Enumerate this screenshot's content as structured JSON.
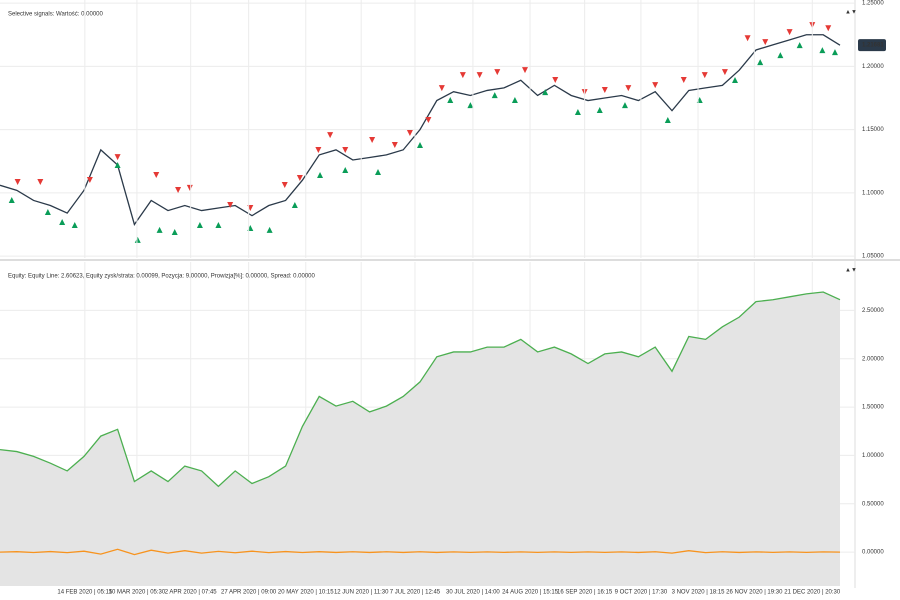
{
  "chart_data": [
    {
      "type": "line",
      "annotation": "Selective signals: Wartość: 0.00000",
      "annotation_color": "#e53935",
      "x": [
        0,
        2,
        4,
        6,
        8,
        10,
        12,
        14,
        16,
        18,
        20,
        22,
        24,
        26,
        28,
        30,
        32,
        34,
        36,
        38,
        40,
        42,
        44,
        46,
        48,
        50,
        52,
        54,
        56,
        58,
        60,
        62,
        64,
        66,
        68,
        70,
        72,
        74,
        76,
        78,
        80,
        82,
        84,
        86,
        88,
        90,
        92,
        94,
        96,
        98,
        100
      ],
      "xlim": [
        0,
        100
      ],
      "ylim": [
        1.0485,
        1.2525
      ],
      "yticks": [
        {
          "value": 1.05,
          "label": "1.05000"
        },
        {
          "value": 1.1,
          "label": "1.10000"
        },
        {
          "value": 1.15,
          "label": "1.15000"
        },
        {
          "value": 1.2,
          "label": "1.20000"
        },
        {
          "value": 1.25,
          "label": "1.25000"
        }
      ],
      "grid": true,
      "last_price": 1.21681,
      "series": [
        {
          "color": "#2b3a4a",
          "values": [
            1.106,
            1.102,
            1.094,
            1.09,
            1.084,
            1.102,
            1.134,
            1.122,
            1.075,
            1.094,
            1.086,
            1.09,
            1.086,
            1.088,
            1.09,
            1.082,
            1.09,
            1.094,
            1.11,
            1.13,
            1.134,
            1.126,
            1.128,
            1.13,
            1.134,
            1.15,
            1.173,
            1.18,
            1.177,
            1.181,
            1.183,
            1.189,
            1.177,
            1.185,
            1.177,
            1.173,
            1.175,
            1.177,
            1.173,
            1.18,
            1.165,
            1.181,
            1.183,
            1.185,
            1.197,
            1.213,
            1.217,
            1.221,
            1.225,
            1.225,
            1.2168
          ]
        },
        {
          "marker": "triangle-down",
          "color": "#e53935",
          "x": [
            2.1,
            4.8,
            10.7,
            14.0,
            18.6,
            21.2,
            22.6,
            27.4,
            29.8,
            33.9,
            35.7,
            37.9,
            39.3,
            41.1,
            44.3,
            47.0,
            48.8,
            51.0,
            52.6,
            55.1,
            57.1,
            59.2,
            62.5,
            66.1,
            69.6,
            72.0,
            74.8,
            78.0,
            81.4,
            83.9,
            86.3,
            89.0,
            91.1,
            94.0,
            96.7,
            98.6
          ],
          "values": [
            1.1086,
            1.1086,
            1.1102,
            1.1283,
            1.1141,
            1.1023,
            1.1039,
            1.0904,
            1.088,
            1.1062,
            1.1118,
            1.1339,
            1.1457,
            1.1339,
            1.1418,
            1.1378,
            1.1473,
            1.1576,
            1.1828,
            1.1931,
            1.1931,
            1.1955,
            1.1971,
            1.1892,
            1.1797,
            1.1813,
            1.1828,
            1.1852,
            1.1892,
            1.1931,
            1.1955,
            1.2223,
            1.2192,
            1.2271,
            1.2326,
            1.2302
          ]
        },
        {
          "marker": "triangle-up",
          "color": "#0a9d58",
          "x": [
            1.4,
            5.7,
            7.4,
            8.9,
            14.0,
            16.4,
            19.0,
            20.8,
            23.8,
            26.0,
            29.8,
            32.1,
            35.1,
            38.1,
            41.1,
            45.0,
            50.0,
            53.6,
            56.0,
            58.9,
            61.3,
            64.9,
            68.8,
            71.4,
            74.4,
            79.5,
            83.3,
            87.5,
            90.5,
            92.9,
            95.2,
            97.9,
            99.4
          ],
          "values": [
            1.0944,
            1.0849,
            1.077,
            1.0746,
            1.122,
            1.0628,
            1.0707,
            1.0691,
            1.0746,
            1.0746,
            1.0722,
            1.0707,
            1.0904,
            1.1141,
            1.1181,
            1.1165,
            1.1378,
            1.1734,
            1.1694,
            1.1773,
            1.1734,
            1.1797,
            1.1639,
            1.1655,
            1.1694,
            1.1576,
            1.1734,
            1.1892,
            1.2034,
            1.2089,
            1.2168,
            1.2129,
            1.2113
          ]
        }
      ]
    },
    {
      "type": "line",
      "annotation": "Equity: Equity Line: 2.60623, Equity zysk/strata: 0.00099, Pozycja: 9.00000, Prowizja[%]: 0.00000, Spread: 0.00000",
      "annotation_color": "#f7931e",
      "x": [
        0,
        2,
        4,
        6,
        8,
        10,
        12,
        14,
        16,
        18,
        20,
        22,
        24,
        26,
        28,
        30,
        32,
        34,
        36,
        38,
        40,
        42,
        44,
        46,
        48,
        50,
        52,
        54,
        56,
        58,
        60,
        62,
        64,
        66,
        68,
        70,
        72,
        74,
        76,
        78,
        80,
        82,
        84,
        86,
        88,
        90,
        92,
        94,
        96,
        98,
        100
      ],
      "xlim": [
        0,
        100
      ],
      "ylim": [
        -0.35,
        3.0
      ],
      "yticks": [
        {
          "value": 0,
          "label": "0.00000"
        },
        {
          "value": 0.5,
          "label": "0.50000"
        },
        {
          "value": 1,
          "label": "1.00000"
        },
        {
          "value": 1.5,
          "label": "1.50000"
        },
        {
          "value": 2,
          "label": "2.00000"
        },
        {
          "value": 2.5,
          "label": "2.50000"
        }
      ],
      "xticks": [
        {
          "value": 10.1,
          "label": "14 FEB 2020 | 05:15"
        },
        {
          "value": 16.3,
          "label": "10 MAR 2020 | 05:30"
        },
        {
          "value": 22.7,
          "label": "2 APR 2020 | 07:45"
        },
        {
          "value": 29.6,
          "label": "27 APR 2020 | 09:00"
        },
        {
          "value": 36.4,
          "label": "20 MAY 2020 | 10:15"
        },
        {
          "value": 43.0,
          "label": "12 JUN 2020 | 11:30"
        },
        {
          "value": 49.4,
          "label": "7 JUL 2020 | 12:45"
        },
        {
          "value": 56.3,
          "label": "30 JUL 2020 | 14:00"
        },
        {
          "value": 63.1,
          "label": "24 AUG 2020 | 15:15"
        },
        {
          "value": 69.6,
          "label": "16 SEP 2020 | 16:15"
        },
        {
          "value": 76.3,
          "label": "9 OCT 2020 | 17:30"
        },
        {
          "value": 83.1,
          "label": "3 NOV 2020 | 18:15"
        },
        {
          "value": 89.8,
          "label": "26 NOV 2020 | 19:30"
        },
        {
          "value": 96.7,
          "label": "21 DEC 2020 | 20:30"
        }
      ],
      "grid": true,
      "series": [
        {
          "color": "#4caf50",
          "fill": "#e4e4e4",
          "values": [
            1.06,
            1.04,
            0.99,
            0.92,
            0.84,
            0.99,
            1.2,
            1.27,
            0.73,
            0.84,
            0.73,
            0.89,
            0.84,
            0.68,
            0.84,
            0.71,
            0.78,
            0.89,
            1.3,
            1.61,
            1.51,
            1.56,
            1.45,
            1.51,
            1.61,
            1.76,
            2.02,
            2.07,
            2.07,
            2.12,
            2.12,
            2.2,
            2.07,
            2.12,
            2.05,
            1.95,
            2.05,
            2.07,
            2.02,
            2.12,
            1.87,
            2.23,
            2.2,
            2.33,
            2.43,
            2.59,
            2.61,
            2.64,
            2.67,
            2.69,
            2.61
          ]
        },
        {
          "color": "#f7931e",
          "values": [
            0,
            0.005,
            -0.004,
            0.006,
            -0.005,
            0.01,
            -0.02,
            0.03,
            -0.025,
            0.02,
            -0.01,
            0.015,
            -0.01,
            0.008,
            -0.006,
            0.01,
            -0.005,
            0.006,
            -0.004,
            0.005,
            -0.003,
            0.004,
            -0.003,
            0.004,
            -0.003,
            0.004,
            -0.003,
            0.003,
            -0.002,
            0.003,
            -0.002,
            0.003,
            -0.002,
            0.003,
            -0.002,
            0.003,
            -0.002,
            0.003,
            -0.003,
            0.004,
            -0.01,
            0.015,
            -0.005,
            0.004,
            -0.003,
            0.003,
            -0.002,
            0.003,
            -0.002,
            0.003,
            0
          ]
        }
      ]
    }
  ]
}
